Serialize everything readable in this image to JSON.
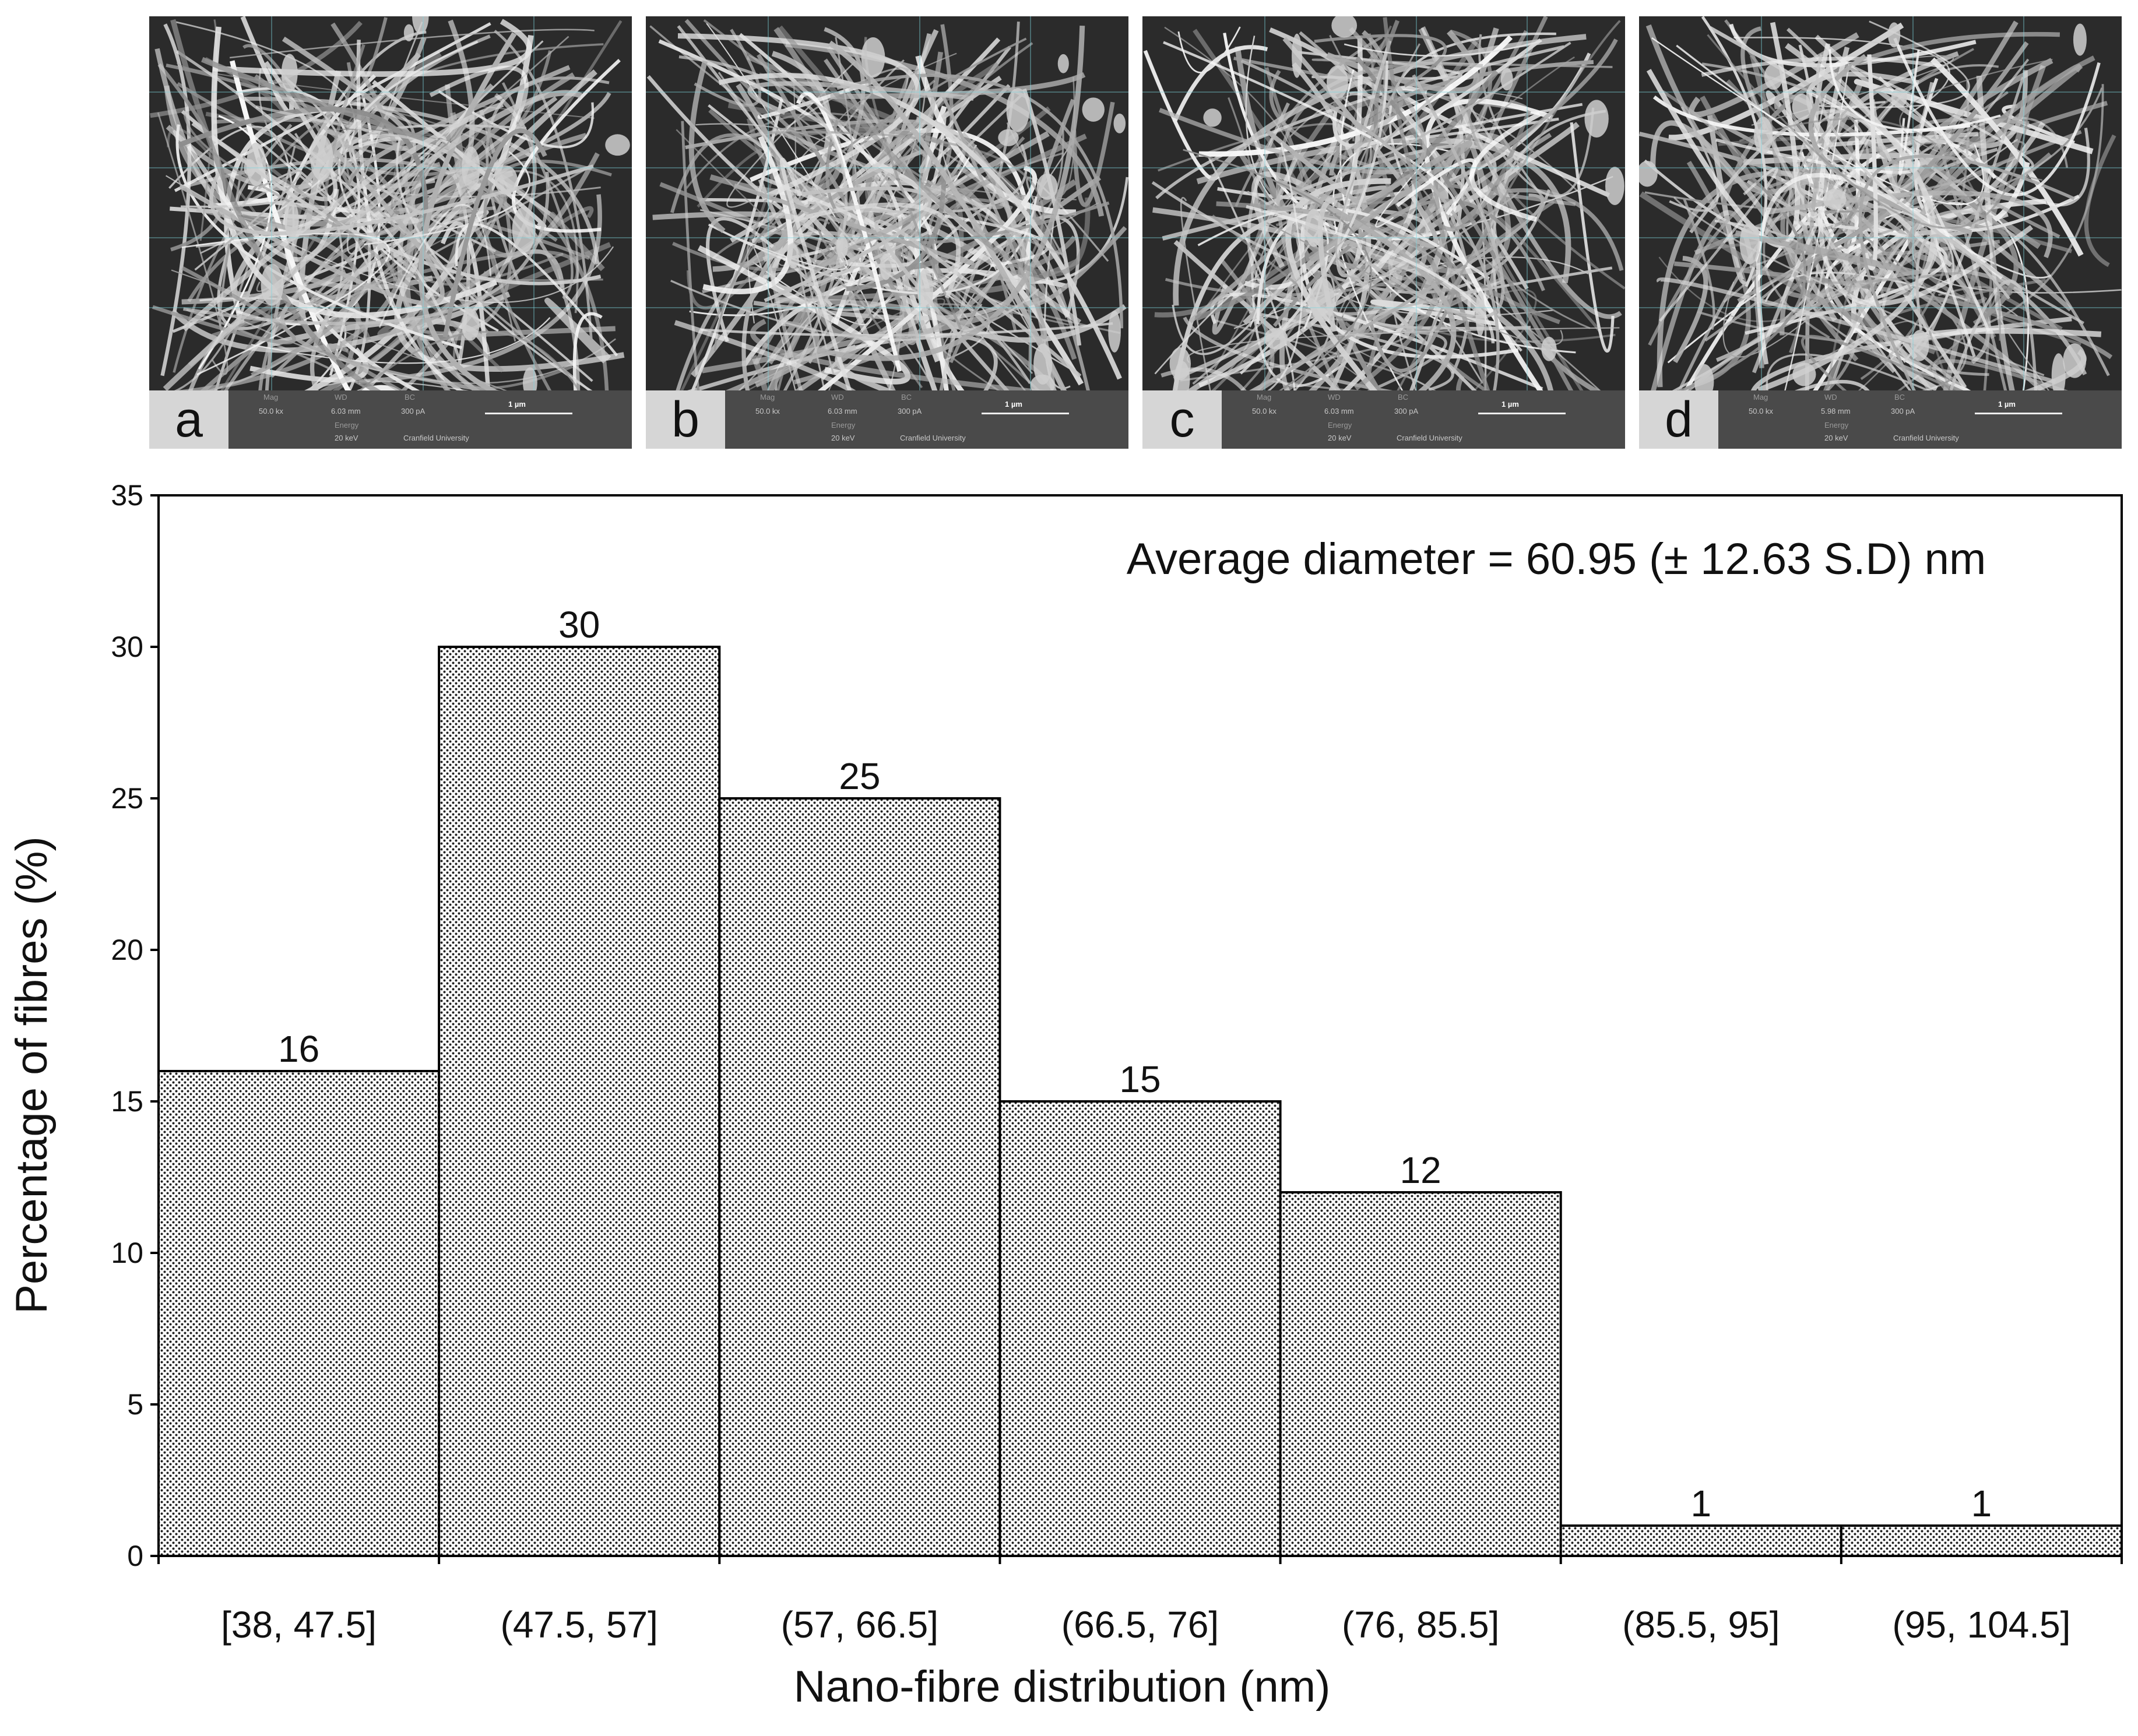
{
  "panels": [
    {
      "letter": "a",
      "mag_label": "Mag",
      "wd_label": "WD",
      "bc_label": "BC",
      "mag": "50.0 kx",
      "wd": "6.03 mm",
      "current": "300 pA",
      "energy_label": "Energy",
      "energy": "20 keV",
      "institution": "Cranfield University",
      "scale": "1 µm"
    },
    {
      "letter": "b",
      "mag_label": "Mag",
      "wd_label": "WD",
      "bc_label": "BC",
      "mag": "50.0 kx",
      "wd": "6.03 mm",
      "current": "300 pA",
      "energy_label": "Energy",
      "energy": "20 keV",
      "institution": "Cranfield University",
      "scale": "1 µm"
    },
    {
      "letter": "c",
      "mag_label": "Mag",
      "wd_label": "WD",
      "bc_label": "BC",
      "mag": "50.0 kx",
      "wd": "6.03 mm",
      "current": "300 pA",
      "energy_label": "Energy",
      "energy": "20 keV",
      "institution": "Cranfield University",
      "scale": "1 µm"
    },
    {
      "letter": "d",
      "mag_label": "Mag",
      "wd_label": "WD",
      "bc_label": "BC",
      "mag": "50.0 kx",
      "wd": "5.98 mm",
      "current": "300 pA",
      "energy_label": "Energy",
      "energy": "20 keV",
      "institution": "Cranfield University",
      "scale": "1 µm"
    }
  ],
  "chart_data": {
    "type": "bar",
    "title": "",
    "annotation": "Average diameter = 60.95 (± 12.63 S.D) nm",
    "xlabel": "Nano-fibre distribution (nm)",
    "ylabel": "Percentage of fibres (%)",
    "categories": [
      "[38, 47.5]",
      "(47.5, 57]",
      "(57, 66.5]",
      "(66.5, 76]",
      "(76, 85.5]",
      "(85.5, 95]",
      "(95, 104.5]"
    ],
    "values": [
      16,
      30,
      25,
      15,
      12,
      1,
      1
    ],
    "data_labels": [
      "16",
      "30",
      "25",
      "15",
      "12",
      "1",
      "1"
    ],
    "ylim": [
      0,
      35
    ],
    "yticks": [
      0,
      5,
      10,
      15,
      20,
      25,
      30,
      35
    ],
    "ytick_labels": [
      "0",
      "5",
      "10",
      "15",
      "20",
      "25",
      "30",
      "35"
    ],
    "grid": false,
    "legend": "none",
    "bar_fill": "dotted stipple",
    "bar_color": "#ffffff",
    "edge_color": "#000000"
  }
}
